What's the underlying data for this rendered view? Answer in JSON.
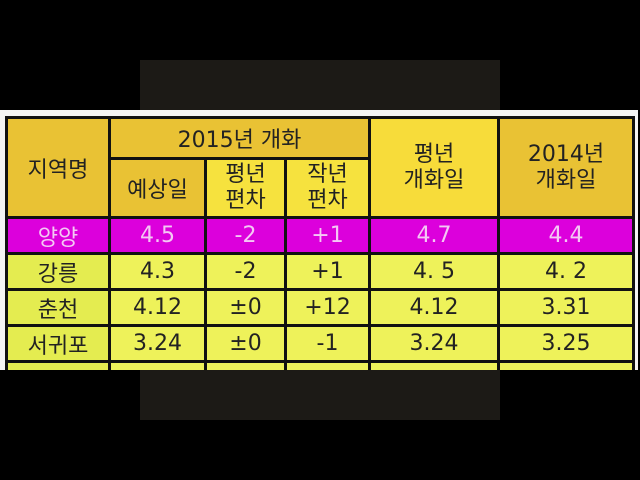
{
  "table": {
    "headers": {
      "region": "지역명",
      "group_2015": "2015년 개화",
      "expected": "예상일",
      "normal_dev": [
        "평년",
        "편차"
      ],
      "lastyear_dev": [
        "작년",
        "편차"
      ],
      "normal_date": [
        "평년",
        "개화일"
      ],
      "date_2014": [
        "2014년",
        "개화일"
      ]
    },
    "rows": [
      {
        "region": "양양",
        "expected": "4.5",
        "normal_dev": "-2",
        "lastyear_dev": "+1",
        "normal_date": "4.7",
        "date_2014": "4.4",
        "highlight": true
      },
      {
        "region": "강릉",
        "expected": "4.3",
        "normal_dev": "-2",
        "lastyear_dev": "+1",
        "normal_date": "4. 5",
        "date_2014": "4. 2"
      },
      {
        "region": "춘천",
        "expected": "4.12",
        "normal_dev": "±0",
        "lastyear_dev": "+12",
        "normal_date": "4.12",
        "date_2014": "3.31"
      },
      {
        "region": "서귀포",
        "expected": "3.24",
        "normal_dev": "±0",
        "lastyear_dev": "-1",
        "normal_date": "3.24",
        "date_2014": "3.25"
      }
    ]
  },
  "colors": {
    "header": "#e9c234",
    "highlight_row": "#dc00dc",
    "row": "#eef25a"
  }
}
